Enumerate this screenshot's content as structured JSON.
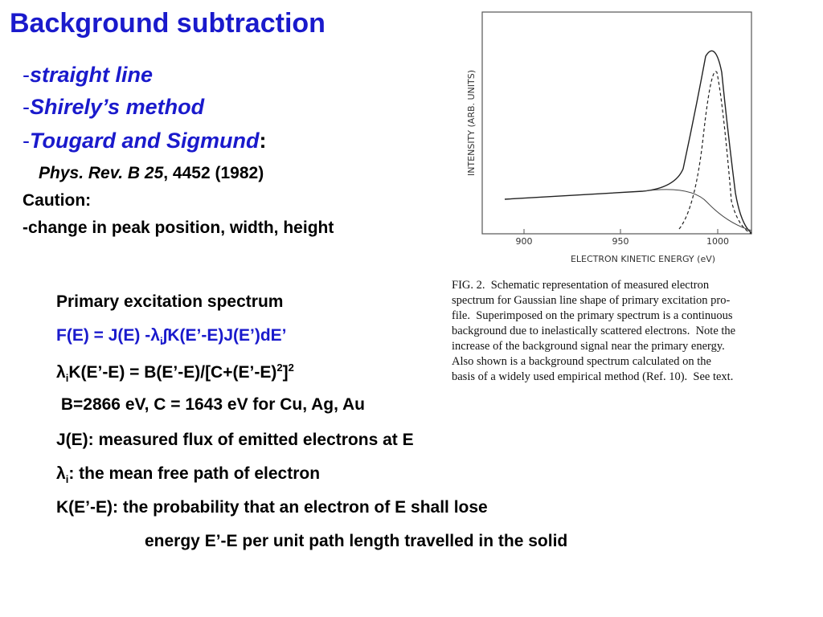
{
  "title": "Background subtraction",
  "methods": [
    {
      "marker": "-",
      "text": "straight line"
    },
    {
      "marker": "-",
      "text": "Shirely’s method"
    },
    {
      "marker": "-",
      "text": "Tougard and Sigmund",
      "suffix": ":"
    }
  ],
  "reference": {
    "journal": "Phys. Rev. B 25",
    "rest": ", 4452 (1982)"
  },
  "caution": {
    "label": "Caution:",
    "text": "-change in peak position, width, height"
  },
  "figure": {
    "y_label": "INTENSITY (ARB. UNITS)",
    "x_label": "ELECTRON KINETIC ENERGY (eV)",
    "xticks": [
      900,
      950,
      1000
    ],
    "caption": [
      "FIG. 2.  Schematic representation of measured electron",
      "spectrum for Gaussian line shape of primary excitation pro-",
      "file.  Superimposed on the primary spectrum is a continuous",
      "background due to inelastically scattered electrons.  Note the",
      "increase of the background signal near the primary energy.",
      "Also shown is a background spectrum calculated on the",
      "basis of a widely used empirical method (Ref. 10).  See text."
    ]
  },
  "body": [
    [
      "Primary excitation spectrum"
    ],
    [
      "F(E) = J(E) -",
      "λ",
      "i",
      "∫K(E’-E)J(E’)dE’"
    ],
    [
      "λ",
      "i",
      "K(E’-E) = B(E’-E)/[C+(E’-E)",
      "2",
      "]",
      "2"
    ],
    [
      " B=2866 eV, C = 1643 eV for Cu, Ag, Au"
    ],
    [
      "J(E): measured flux of emitted electrons at E"
    ],
    [
      "λ",
      "i",
      ": the mean free path of electron"
    ],
    [
      "K(E’-E): the probability that an electron of E shall lose"
    ],
    [
      "energy E’-E per unit path length travelled in the solid"
    ]
  ]
}
